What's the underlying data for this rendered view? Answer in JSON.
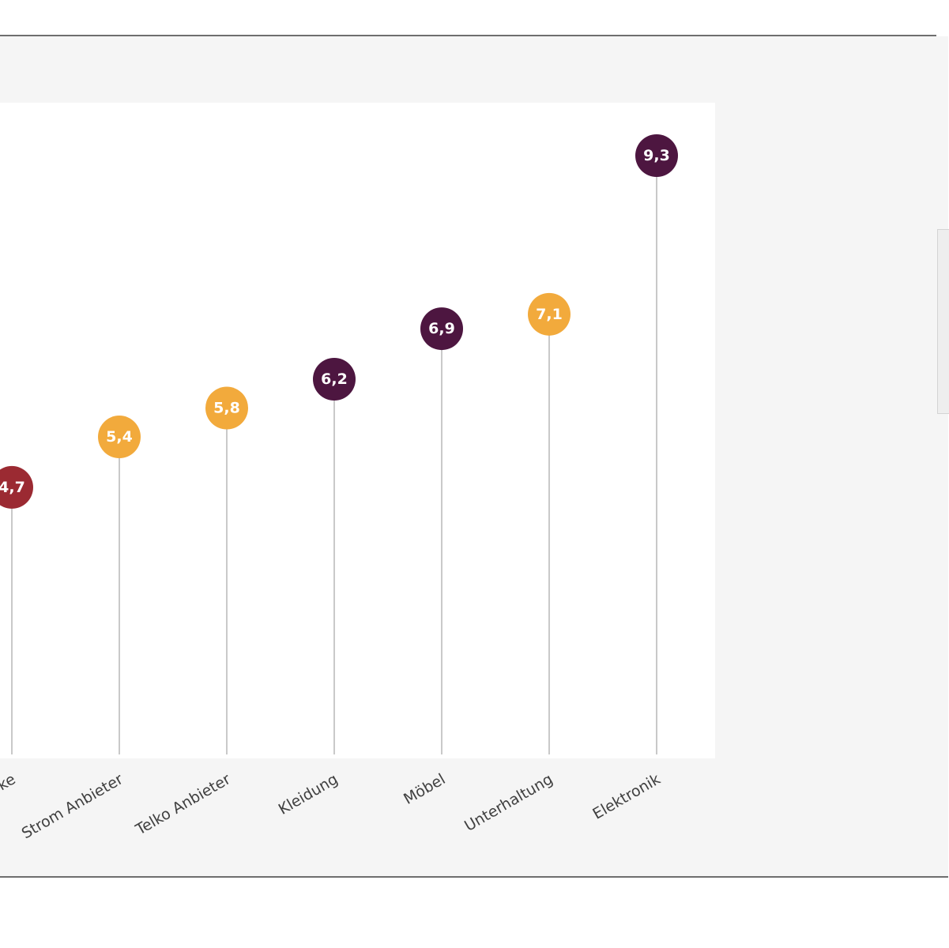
{
  "chart_data": {
    "type": "lollipop",
    "categories": [
      "ke",
      "Strom Anbieter",
      "Telko Anbieter",
      "Kleidung",
      "Möbel",
      "Unterhaltung",
      "Elektronik"
    ],
    "values": [
      4.7,
      5.4,
      5.8,
      6.2,
      6.9,
      7.1,
      9.3
    ],
    "value_labels": [
      "4,7",
      "5,4",
      "5,8",
      "6,2",
      "6,9",
      "7,1",
      "9,3"
    ],
    "point_colors": [
      "#9b2a32",
      "#f2aa3c",
      "#f2aa3c",
      "#4d1640",
      "#4d1640",
      "#f2aa3c",
      "#4d1640"
    ],
    "title": "",
    "xlabel": "",
    "ylabel": "",
    "ylim": [
      0,
      10
    ],
    "grid": false,
    "legend": "none"
  }
}
